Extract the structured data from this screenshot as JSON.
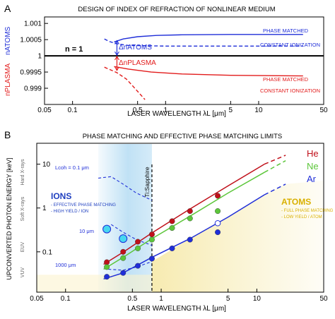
{
  "colors": {
    "blue": "#1f2ed8",
    "red": "#e21b1b",
    "green": "#5cc63a",
    "dark_red": "#c0101a",
    "ions_blue": "#2040c0",
    "atoms_gold": "#d9b000",
    "ions_shade": "#b9def4",
    "atoms_shade": "#f6e9a8"
  },
  "chart_data": [
    {
      "type": "line",
      "panel_label": "A",
      "title": "DESIGN OF INDEX OF REFRACTION OF NONLINEAR MEDIUM",
      "xlabel": "LASER WAVELENGTH λL [μm]",
      "ylabel_top": "nATOMS",
      "ylabel_bottom": "nPLASMA",
      "x_scale": "log",
      "xlim": [
        0.05,
        50
      ],
      "ylim": [
        0.9985,
        1.0012
      ],
      "xticks": [
        "0.05",
        "0.1",
        "0.5",
        "1",
        "5",
        "10",
        "50"
      ],
      "yticks": [
        "0.999",
        "0.9995",
        "1",
        "1.0005",
        "1.001"
      ],
      "reference_label": "n = 1",
      "series": [
        {
          "name": "PHASE MATCHED",
          "color": "#1f2ed8",
          "dash": "solid",
          "points": [
            [
              0.28,
              1.00043
            ],
            [
              0.35,
              1.00052
            ],
            [
              0.5,
              1.00059
            ],
            [
              0.8,
              1.00063
            ],
            [
              1.5,
              1.00065
            ],
            [
              5,
              1.00066
            ],
            [
              30,
              1.00066
            ]
          ]
        },
        {
          "name": "CONSTANT IONIZATION",
          "color": "#1f2ed8",
          "dash": "dashed",
          "points": [
            [
              0.22,
              1.00052
            ],
            [
              0.25,
              1.00044
            ],
            [
              0.3,
              1.00037
            ],
            [
              0.4,
              1.00032
            ],
            [
              1,
              1.0003
            ],
            [
              30,
              1.0003
            ]
          ]
        },
        {
          "name": "PHASE MATCHED",
          "color": "#e21b1b",
          "dash": "solid",
          "points": [
            [
              0.28,
              0.99967
            ],
            [
              0.4,
              0.99959
            ],
            [
              0.7,
              0.9995
            ],
            [
              1.5,
              0.99944
            ],
            [
              5,
              0.9994
            ],
            [
              30,
              0.99938
            ]
          ]
        },
        {
          "name": "CONSTANT IONIZATION",
          "color": "#e21b1b",
          "dash": "dashed",
          "points": [
            [
              0.22,
              0.99965
            ],
            [
              0.3,
              0.99948
            ],
            [
              0.38,
              0.99928
            ],
            [
              0.45,
              0.99905
            ],
            [
              0.52,
              0.99885
            ],
            [
              0.6,
              0.99865
            ]
          ]
        }
      ],
      "annotations": [
        {
          "text": "ΔnATOMS",
          "color": "#1f2ed8"
        },
        {
          "text": "ΔnPLASMA",
          "color": "#e21b1b"
        }
      ]
    },
    {
      "type": "scatter",
      "panel_label": "B",
      "title": "PHASE MATCHING AND EFFECTIVE PHASE MATCHING LIMITS",
      "xlabel": "LASER WAVELENGTH λL [μm]",
      "ylabel": "UPCONVERTED PHOTON ENERGY [keV]",
      "x_scale": "log",
      "y_scale": "log",
      "xlim": [
        0.05,
        50
      ],
      "ylim": [
        0.012,
        30
      ],
      "xticks": [
        "0.05",
        "0.1",
        "0.5",
        "1",
        "5",
        "10",
        "50"
      ],
      "yticks": [
        "0.1",
        "1",
        "10"
      ],
      "spectral_bands": [
        "Hard X-rays",
        "Soft X-rays",
        "EUV",
        "VUV"
      ],
      "vertical_marker": {
        "label": "Ti:Sapphire",
        "x": 0.8
      },
      "legend_entries": [
        {
          "name": "He",
          "color": "#c0101a"
        },
        {
          "name": "Ne",
          "color": "#5cc63a"
        },
        {
          "name": "Ar",
          "color": "#1f2ed8"
        }
      ],
      "regions": [
        {
          "title": "IONS",
          "lines": [
            "- EFFECTIVE PHASE MATCHING",
            "- HIGH YIELD / ION"
          ],
          "color": "#2040c0"
        },
        {
          "title": "ATOMS",
          "lines": [
            "- FULL PHASE MATCHING",
            "- LOW YIELD / ATOM"
          ],
          "color": "#d9b000"
        }
      ],
      "coherence_curves": [
        {
          "label": "Lcoh = 0.1 μm",
          "points": [
            [
              0.22,
              4.8
            ],
            [
              0.3,
              5.2
            ],
            [
              0.4,
              3.5
            ],
            [
              0.55,
              2.2
            ],
            [
              0.8,
              1.5
            ]
          ]
        },
        {
          "label": "10 μm",
          "points": [
            [
              0.3,
              0.42
            ],
            [
              0.4,
              0.28
            ],
            [
              0.55,
              0.19
            ],
            [
              0.8,
              0.14
            ]
          ]
        },
        {
          "label": "1000 μm",
          "points": [
            [
              0.28,
              0.04
            ],
            [
              0.4,
              0.038
            ],
            [
              0.55,
              0.045
            ],
            [
              0.8,
              0.06
            ]
          ]
        }
      ],
      "series": [
        {
          "name": "He",
          "color": "#c0101a",
          "points": [
            [
              0.27,
              0.058
            ],
            [
              0.4,
              0.1
            ],
            [
              0.57,
              0.17
            ],
            [
              0.8,
              0.25
            ],
            [
              1.3,
              0.5
            ],
            [
              2,
              0.85
            ],
            [
              3.9,
              1.9
            ]
          ],
          "trend": [
            [
              0.25,
              0.052
            ],
            [
              0.4,
              0.098
            ],
            [
              0.8,
              0.27
            ],
            [
              2,
              0.95
            ],
            [
              5,
              3.2
            ],
            [
              12,
              10
            ],
            [
              20,
              16
            ]
          ]
        },
        {
          "name": "Ne",
          "color": "#5cc63a",
          "points": [
            [
              0.27,
              0.045
            ],
            [
              0.4,
              0.072
            ],
            [
              0.57,
              0.12
            ],
            [
              0.8,
              0.19
            ],
            [
              1.3,
              0.35
            ],
            [
              2,
              0.58
            ],
            [
              3.9,
              0.85
            ]
          ],
          "trend": [
            [
              0.25,
              0.04
            ],
            [
              0.4,
              0.075
            ],
            [
              0.8,
              0.2
            ],
            [
              2,
              0.65
            ],
            [
              5,
              2.2
            ],
            [
              12,
              6.5
            ],
            [
              20,
              12
            ]
          ]
        },
        {
          "name": "Ar",
          "color": "#1f2ed8",
          "points": [
            [
              0.27,
              0.027
            ],
            [
              0.4,
              0.033
            ],
            [
              0.57,
              0.048
            ],
            [
              0.8,
              0.07
            ],
            [
              1.3,
              0.12
            ],
            [
              2,
              0.19
            ],
            [
              3.9,
              0.28
            ]
          ],
          "extra_points": [
            [
              3.9,
              0.45
            ],
            [
              0.27,
              0.33
            ],
            [
              0.4,
              0.2
            ]
          ],
          "trend": [
            [
              0.25,
              0.024
            ],
            [
              0.4,
              0.033
            ],
            [
              0.8,
              0.075
            ],
            [
              2,
              0.2
            ],
            [
              5,
              0.62
            ],
            [
              12,
              2.0
            ],
            [
              20,
              3.5
            ]
          ]
        }
      ]
    }
  ]
}
